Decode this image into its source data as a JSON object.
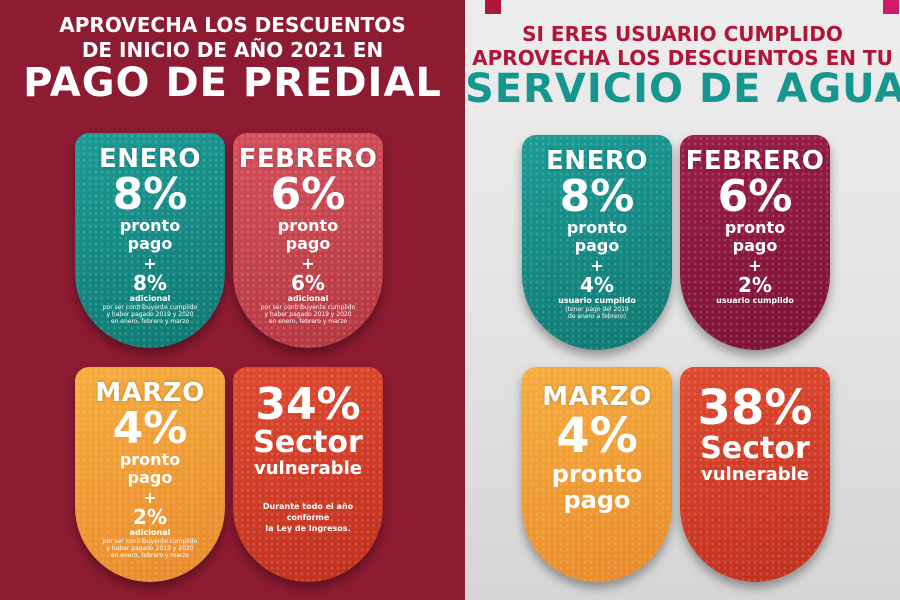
{
  "predial": {
    "header": {
      "line1": "APROVECHA LOS DESCUENTOS",
      "line2": "DE INICIO DE AÑO 2021 EN",
      "title": "PAGO DE PREDIAL"
    },
    "cards": {
      "enero": {
        "month": "ENERO",
        "percent": "8%",
        "label1": "pronto",
        "label2": "pago",
        "plus": "+",
        "percent2": "8%",
        "adicional": "adicional",
        "note1": "por ser contribuyente cumplido",
        "note2": "y haber pagado 2019 y 2020",
        "note3": "en enero, febrero y marzo"
      },
      "febrero": {
        "month": "FEBRERO",
        "percent": "6%",
        "label1": "pronto",
        "label2": "pago",
        "plus": "+",
        "percent2": "6%",
        "adicional": "adicional",
        "note1": "por ser contribuyente cumplido",
        "note2": "y haber pagado 2019 y 2020",
        "note3": "en enero, febrero y marzo"
      },
      "marzo": {
        "month": "MARZO",
        "percent": "4%",
        "label1": "pronto",
        "label2": "pago",
        "plus": "+",
        "percent2": "2%",
        "adicional": "adicional",
        "note1": "por ser contribuyente cumplido",
        "note2": "y haber pagado 2019 y 2020",
        "note3": "en enero, febrero y marzo"
      },
      "sector": {
        "percent": "34%",
        "label1": "Sector",
        "label2": "vulnerable",
        "note1": "Durante todo el año",
        "note2": "conforme",
        "note3": "la Ley de Ingresos."
      }
    }
  },
  "agua": {
    "header": {
      "line1": "SI ERES USUARIO CUMPLIDO",
      "line2": "APROVECHA LOS DESCUENTOS EN TU",
      "title": "SERVICIO DE AGUA"
    },
    "cards": {
      "enero": {
        "month": "ENERO",
        "percent": "8%",
        "label1": "pronto",
        "label2": "pago",
        "plus": "+",
        "percent2": "4%",
        "usuario": "usuario cumplido",
        "note1": "(tener pago del 2019",
        "note2": "de enero a febrero)"
      },
      "febrero": {
        "month": "FEBRERO",
        "percent": "6%",
        "label1": "pronto",
        "label2": "pago",
        "plus": "+",
        "percent2": "2%",
        "usuario": "usuario  cumplido"
      },
      "marzo": {
        "month": "MARZO",
        "percent": "4%",
        "label1": "pronto",
        "label2": "pago"
      },
      "sector": {
        "percent": "38%",
        "label1": "Sector",
        "label2": "vulnerable"
      }
    }
  },
  "colors": {
    "maroon": "#8d1b32",
    "teal": "#13857f",
    "rose": "#c54249",
    "orange": "#f09b33",
    "red": "#d23d26",
    "plum": "#8c1840",
    "header_red": "#b0163a",
    "header_teal": "#159790"
  }
}
